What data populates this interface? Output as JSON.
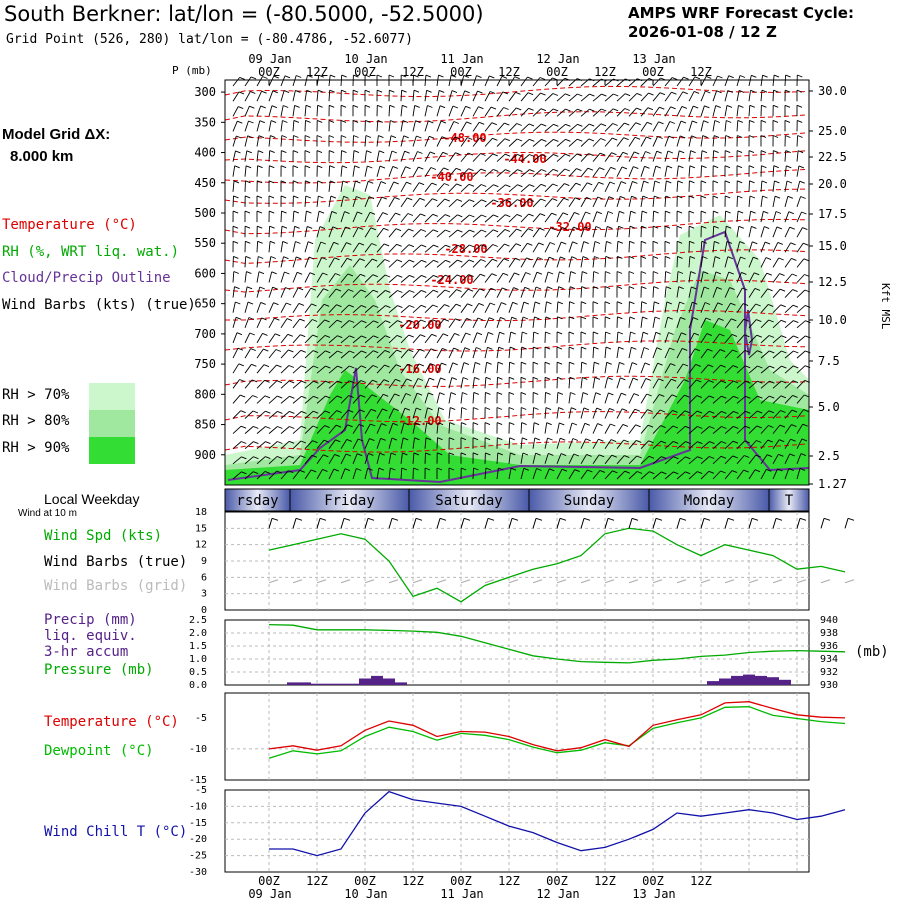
{
  "header": {
    "title": "South Berkner:  lat/lon = (-80.5000, -52.5000)",
    "subtitle": "Grid Point (526, 280) lat/lon = (-80.4786, -52.6077)",
    "cycle_line1": "AMPS WRF Forecast Cycle:",
    "cycle_line2": "2026-01-08 / 12  Z"
  },
  "legend": {
    "model_grid_label": "Model Grid ΔX:",
    "model_grid_value": "8.000 km",
    "temperature": "Temperature (°C)",
    "rh": "RH (%, WRT liq. wat.)",
    "cloud": "Cloud/Precip Outline",
    "wind_barbs": "Wind Barbs (kts) (true)",
    "rh_levels": [
      {
        "label": "RH > 70%",
        "color": "#ccf7cc"
      },
      {
        "label": "RH > 80%",
        "color": "#a0e8a0"
      },
      {
        "label": "RH > 90%",
        "color": "#33dd33"
      }
    ]
  },
  "colors": {
    "temperature": "#dd0000",
    "rh": "#00aa00",
    "cloud": "#663399",
    "wind_grid": "#aaaaaa",
    "precip": "#552288",
    "pressure": "#00aa00",
    "dewpoint": "#00bb00",
    "wind_chill": "#1111aa"
  },
  "time_axis": {
    "top_dates": [
      "09 Jan",
      "10 Jan",
      "11 Jan",
      "12 Jan",
      "13 Jan"
    ],
    "hour_labels": [
      "00Z",
      "12Z",
      "00Z",
      "12Z",
      "00Z",
      "12Z",
      "00Z",
      "12Z",
      "00Z",
      "12Z"
    ],
    "bottom_dates": [
      "09 Jan",
      "10 Jan",
      "11 Jan",
      "12 Jan",
      "13 Jan"
    ]
  },
  "weekday": {
    "label": "Local Weekday",
    "days": [
      "rsday",
      "Friday",
      "Saturday",
      "Sunday",
      "Monday",
      "T"
    ]
  },
  "wind_panel": {
    "note": "Wind at 10 m",
    "labels": [
      "Wind Spd (kts)",
      "Wind Barbs (true)",
      "Wind Barbs (grid)"
    ],
    "yticks": [
      "18",
      "15",
      "12",
      "9",
      "6",
      "3",
      "0"
    ]
  },
  "precip_panel": {
    "labels": [
      "Precip (mm)",
      "liq. equiv.",
      "3-hr accum",
      "Pressure (mb)"
    ],
    "left_ticks": [
      "2.5",
      "2.0",
      "1.5",
      "1.0",
      "0.5",
      "0.0"
    ],
    "right_ticks": [
      "940",
      "938",
      "936",
      "934",
      "932",
      "930"
    ],
    "unit": "(mb)"
  },
  "temp_panel": {
    "labels": [
      "Temperature (°C)",
      "Dewpoint (°C)"
    ],
    "yticks": [
      "-5",
      "-10",
      "-15"
    ]
  },
  "chill_panel": {
    "label": "Wind Chill T (°C)",
    "yticks": [
      "-5",
      "-10",
      "-15",
      "-20",
      "-25",
      "-30"
    ]
  },
  "chart_data": [
    {
      "type": "area",
      "title": "",
      "ylabel": "P (mb)",
      "y2label": "Kft MSL",
      "ylim": [
        950,
        280
      ],
      "pressure_ticks": [
        "300",
        "350",
        "400",
        "450",
        "500",
        "550",
        "600",
        "650",
        "700",
        "750",
        "800",
        "850",
        "900"
      ],
      "height_ticks": [
        "30.0",
        "25.0",
        "22.5",
        "20.0",
        "17.5",
        "15.0",
        "12.5",
        "10.0",
        "7.5",
        "5.0",
        "2.5",
        "1.27"
      ],
      "temperature_contour_labels": [
        "-48.00",
        "-44.00",
        "-40.00",
        "-36.00",
        "-32.00",
        "-28.00",
        "-24.00",
        "-20.00",
        "-16.00",
        "-12.00"
      ]
    },
    {
      "type": "line",
      "title": "",
      "ylim": [
        0,
        18
      ],
      "x_hours": [
        0,
        6,
        12,
        18,
        24,
        30,
        36,
        42,
        48,
        54,
        60,
        66,
        72,
        78,
        84,
        90,
        96,
        102,
        108,
        114,
        120,
        126,
        132,
        138,
        144
      ],
      "series": [
        {
          "name": "Wind Spd (kts)",
          "values": [
            11,
            12,
            13,
            14,
            13,
            9,
            2.5,
            4,
            1.5,
            4.5,
            6,
            7.5,
            8.5,
            10,
            14,
            15,
            14.5,
            12,
            10,
            12,
            11,
            10,
            7.5,
            8,
            7
          ]
        }
      ]
    },
    {
      "type": "bar",
      "title": "",
      "x_hours": [
        6,
        9,
        12,
        15,
        18,
        21,
        24,
        27,
        30,
        33,
        111,
        114,
        117,
        120,
        123,
        126,
        129
      ],
      "series": [
        {
          "name": "Precip (mm)",
          "values": [
            0.1,
            0.1,
            0.05,
            0.05,
            0.05,
            0.05,
            0.25,
            0.35,
            0.25,
            0.1,
            0.15,
            0.25,
            0.35,
            0.4,
            0.35,
            0.3,
            0.2
          ]
        },
        {
          "name": "Pressure (mb)",
          "x_hours": [
            0,
            6,
            12,
            18,
            24,
            30,
            36,
            42,
            48,
            54,
            60,
            66,
            72,
            78,
            84,
            90,
            96,
            102,
            108,
            114,
            120,
            126,
            132,
            138,
            144
          ],
          "values": [
            939.3,
            939.2,
            938.5,
            938.5,
            938.5,
            938.4,
            938.3,
            938.1,
            937.5,
            936.5,
            935.5,
            934.5,
            934,
            933.6,
            933.5,
            933.4,
            933.8,
            934,
            934.4,
            934.6,
            935,
            935.2,
            935.3,
            935.2,
            935.1
          ]
        }
      ]
    },
    {
      "type": "line",
      "title": "",
      "ylim": [
        -15,
        -1
      ],
      "x_hours": [
        0,
        6,
        12,
        18,
        24,
        30,
        36,
        42,
        48,
        54,
        60,
        66,
        72,
        78,
        84,
        90,
        96,
        102,
        108,
        114,
        120,
        126,
        132,
        138,
        144
      ],
      "series": [
        {
          "name": "Temperature (°C)",
          "values": [
            -10,
            -9.5,
            -10.2,
            -9.5,
            -7,
            -5.5,
            -6.2,
            -8,
            -7.2,
            -7.3,
            -8,
            -9.3,
            -10.3,
            -9.8,
            -8.5,
            -9.6,
            -6.2,
            -5.3,
            -4.5,
            -2.6,
            -2.4,
            -3.5,
            -4.5,
            -4.9,
            -5
          ]
        },
        {
          "name": "Dewpoint (°C)",
          "values": [
            -11.5,
            -10.3,
            -10.8,
            -10.3,
            -8,
            -6.5,
            -7.2,
            -8.6,
            -7.5,
            -7.8,
            -8.5,
            -9.7,
            -10.6,
            -10.2,
            -9,
            -9.5,
            -6.7,
            -5.8,
            -5,
            -3.3,
            -3.2,
            -4.6,
            -5.1,
            -5.6,
            -5.9
          ]
        }
      ]
    },
    {
      "type": "line",
      "title": "",
      "ylim": [
        -30,
        -5
      ],
      "x_hours": [
        0,
        6,
        12,
        18,
        24,
        30,
        36,
        42,
        48,
        54,
        60,
        66,
        72,
        78,
        84,
        90,
        96,
        102,
        108,
        114,
        120,
        126,
        132,
        138,
        144
      ],
      "series": [
        {
          "name": "Wind Chill T (°C)",
          "values": [
            -23,
            -23,
            -25,
            -23,
            -12,
            -5.5,
            -8,
            -9,
            -10,
            -13,
            -16,
            -18,
            -21,
            -23.5,
            -22.5,
            -20,
            -17,
            -12,
            -13,
            -12,
            -11,
            -12,
            -14,
            -13,
            -11
          ]
        }
      ]
    }
  ]
}
